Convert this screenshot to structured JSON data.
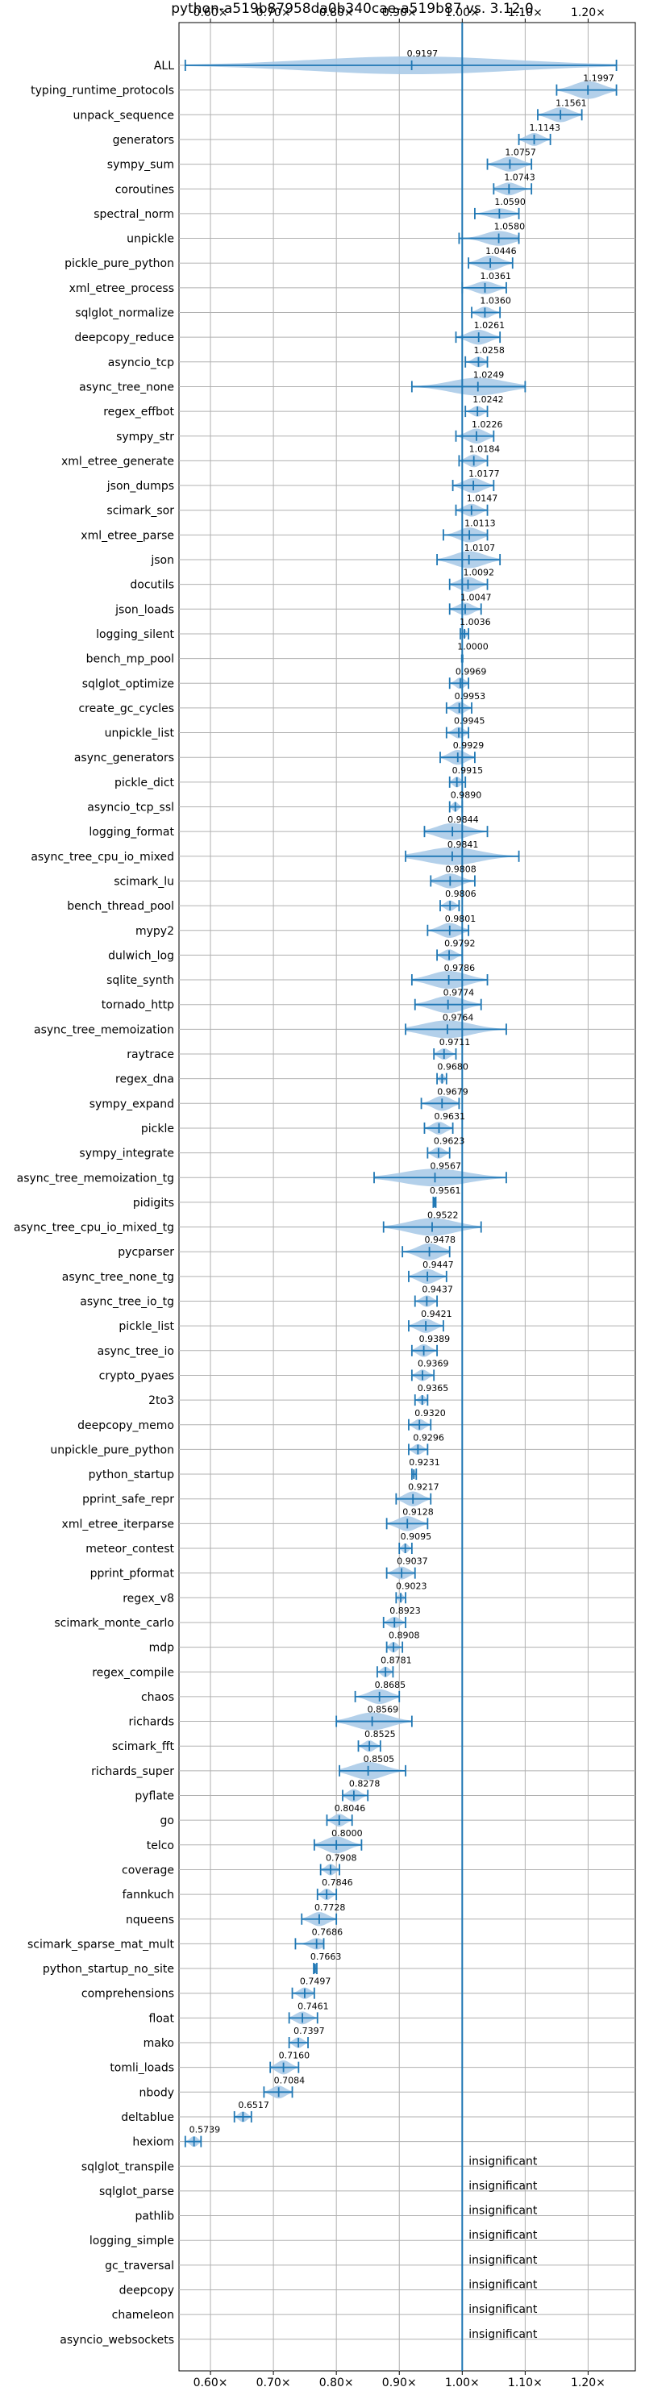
{
  "chart_data": {
    "type": "violin",
    "title": "python-a519b87958da0b340cae-a519b87 vs. 3.12.0",
    "xlim": [
      0.55,
      1.275
    ],
    "xticks": [
      0.6,
      0.7,
      0.8,
      0.9,
      1.0,
      1.1,
      1.2
    ],
    "xtick_labels": [
      "0.60×",
      "0.70×",
      "0.80×",
      "0.90×",
      "1.00×",
      "1.10×",
      "1.20×"
    ],
    "reference_line": 1.0,
    "grid": true,
    "insignificant_label": "insignificant",
    "benchmarks": [
      {
        "name": "ALL",
        "value": 0.9197,
        "label": "0.9197",
        "min": 0.56,
        "max": 1.245,
        "spread": 0.03
      },
      {
        "name": "typing_runtime_protocols",
        "value": 1.1997,
        "label": "1.1997",
        "min": 1.15,
        "max": 1.245,
        "spread": 0.03
      },
      {
        "name": "unpack_sequence",
        "value": 1.1561,
        "label": "1.1561",
        "min": 1.12,
        "max": 1.19,
        "spread": 0.02
      },
      {
        "name": "generators",
        "value": 1.1143,
        "label": "1.1143",
        "min": 1.09,
        "max": 1.14,
        "spread": 0.015
      },
      {
        "name": "sympy_sum",
        "value": 1.0757,
        "label": "1.0757",
        "min": 1.04,
        "max": 1.11,
        "spread": 0.02
      },
      {
        "name": "coroutines",
        "value": 1.0743,
        "label": "1.0743",
        "min": 1.05,
        "max": 1.11,
        "spread": 0.015
      },
      {
        "name": "spectral_norm",
        "value": 1.059,
        "label": "1.0590",
        "min": 1.02,
        "max": 1.09,
        "spread": 0.01
      },
      {
        "name": "unpickle",
        "value": 1.058,
        "label": "1.0580",
        "min": 0.995,
        "max": 1.09,
        "spread": 0.02
      },
      {
        "name": "pickle_pure_python",
        "value": 1.0446,
        "label": "1.0446",
        "min": 1.01,
        "max": 1.08,
        "spread": 0.02
      },
      {
        "name": "xml_etree_process",
        "value": 1.0361,
        "label": "1.0361",
        "min": 1.0,
        "max": 1.07,
        "spread": 0.015
      },
      {
        "name": "sqlglot_normalize",
        "value": 1.036,
        "label": "1.0360",
        "min": 1.015,
        "max": 1.06,
        "spread": 0.012
      },
      {
        "name": "deepcopy_reduce",
        "value": 1.0261,
        "label": "1.0261",
        "min": 0.99,
        "max": 1.06,
        "spread": 0.02
      },
      {
        "name": "asyncio_tcp",
        "value": 1.0258,
        "label": "1.0258",
        "min": 1.005,
        "max": 1.04,
        "spread": 0.01
      },
      {
        "name": "async_tree_none",
        "value": 1.0249,
        "label": "1.0249",
        "min": 0.92,
        "max": 1.1,
        "spread": 0.04
      },
      {
        "name": "regex_effbot",
        "value": 1.0242,
        "label": "1.0242",
        "min": 1.005,
        "max": 1.04,
        "spread": 0.01
      },
      {
        "name": "sympy_str",
        "value": 1.0226,
        "label": "1.0226",
        "min": 0.99,
        "max": 1.05,
        "spread": 0.02
      },
      {
        "name": "xml_etree_generate",
        "value": 1.0184,
        "label": "1.0184",
        "min": 0.995,
        "max": 1.04,
        "spread": 0.015
      },
      {
        "name": "json_dumps",
        "value": 1.0177,
        "label": "1.0177",
        "min": 0.985,
        "max": 1.05,
        "spread": 0.02
      },
      {
        "name": "scimark_sor",
        "value": 1.0147,
        "label": "1.0147",
        "min": 0.99,
        "max": 1.04,
        "spread": 0.015
      },
      {
        "name": "xml_etree_parse",
        "value": 1.0113,
        "label": "1.0113",
        "min": 0.97,
        "max": 1.04,
        "spread": 0.02
      },
      {
        "name": "json",
        "value": 1.0107,
        "label": "1.0107",
        "min": 0.96,
        "max": 1.06,
        "spread": 0.025
      },
      {
        "name": "docutils",
        "value": 1.0092,
        "label": "1.0092",
        "min": 0.98,
        "max": 1.04,
        "spread": 0.02
      },
      {
        "name": "json_loads",
        "value": 1.0047,
        "label": "1.0047",
        "min": 0.98,
        "max": 1.03,
        "spread": 0.015
      },
      {
        "name": "logging_silent",
        "value": 1.0036,
        "label": "1.0036",
        "min": 0.997,
        "max": 1.01,
        "spread": 0.006
      },
      {
        "name": "bench_mp_pool",
        "value": 1.0,
        "label": "1.0000",
        "min": 1.0,
        "max": 1.0,
        "spread": 0.0
      },
      {
        "name": "sqlglot_optimize",
        "value": 0.9969,
        "label": "0.9969",
        "min": 0.98,
        "max": 1.01,
        "spread": 0.012
      },
      {
        "name": "create_gc_cycles",
        "value": 0.9953,
        "label": "0.9953",
        "min": 0.975,
        "max": 1.015,
        "spread": 0.015
      },
      {
        "name": "unpickle_list",
        "value": 0.9945,
        "label": "0.9945",
        "min": 0.975,
        "max": 1.01,
        "spread": 0.012
      },
      {
        "name": "async_generators",
        "value": 0.9929,
        "label": "0.9929",
        "min": 0.965,
        "max": 1.02,
        "spread": 0.02
      },
      {
        "name": "pickle_dict",
        "value": 0.9915,
        "label": "0.9915",
        "min": 0.98,
        "max": 1.005,
        "spread": 0.01
      },
      {
        "name": "asyncio_tcp_ssl",
        "value": 0.989,
        "label": "0.9890",
        "min": 0.98,
        "max": 1.0,
        "spread": 0.008
      },
      {
        "name": "logging_format",
        "value": 0.9844,
        "label": "0.9844",
        "min": 0.94,
        "max": 1.04,
        "spread": 0.025
      },
      {
        "name": "async_tree_cpu_io_mixed",
        "value": 0.9841,
        "label": "0.9841",
        "min": 0.91,
        "max": 1.09,
        "spread": 0.04
      },
      {
        "name": "scimark_lu",
        "value": 0.9808,
        "label": "0.9808",
        "min": 0.95,
        "max": 1.02,
        "spread": 0.02
      },
      {
        "name": "bench_thread_pool",
        "value": 0.9806,
        "label": "0.9806",
        "min": 0.965,
        "max": 0.995,
        "spread": 0.01
      },
      {
        "name": "mypy2",
        "value": 0.9801,
        "label": "0.9801",
        "min": 0.945,
        "max": 1.01,
        "spread": 0.02
      },
      {
        "name": "dulwich_log",
        "value": 0.9792,
        "label": "0.9792",
        "min": 0.96,
        "max": 1.0,
        "spread": 0.012
      },
      {
        "name": "sqlite_synth",
        "value": 0.9786,
        "label": "0.9786",
        "min": 0.92,
        "max": 1.04,
        "spread": 0.03
      },
      {
        "name": "tornado_http",
        "value": 0.9774,
        "label": "0.9774",
        "min": 0.925,
        "max": 1.03,
        "spread": 0.025
      },
      {
        "name": "async_tree_memoization",
        "value": 0.9764,
        "label": "0.9764",
        "min": 0.91,
        "max": 1.07,
        "spread": 0.04
      },
      {
        "name": "raytrace",
        "value": 0.9711,
        "label": "0.9711",
        "min": 0.955,
        "max": 0.99,
        "spread": 0.012
      },
      {
        "name": "regex_dna",
        "value": 0.968,
        "label": "0.9680",
        "min": 0.96,
        "max": 0.975,
        "spread": 0.008
      },
      {
        "name": "sympy_expand",
        "value": 0.9679,
        "label": "0.9679",
        "min": 0.935,
        "max": 0.995,
        "spread": 0.02
      },
      {
        "name": "pickle",
        "value": 0.9631,
        "label": "0.9631",
        "min": 0.94,
        "max": 0.985,
        "spread": 0.015
      },
      {
        "name": "sympy_integrate",
        "value": 0.9623,
        "label": "0.9623",
        "min": 0.945,
        "max": 0.98,
        "spread": 0.012
      },
      {
        "name": "async_tree_memoization_tg",
        "value": 0.9567,
        "label": "0.9567",
        "min": 0.86,
        "max": 1.07,
        "spread": 0.045
      },
      {
        "name": "pidigits",
        "value": 0.9561,
        "label": "0.9561",
        "min": 0.954,
        "max": 0.958,
        "spread": 0.003
      },
      {
        "name": "async_tree_cpu_io_mixed_tg",
        "value": 0.9522,
        "label": "0.9522",
        "min": 0.875,
        "max": 1.03,
        "spread": 0.04
      },
      {
        "name": "pycparser",
        "value": 0.9478,
        "label": "0.9478",
        "min": 0.905,
        "max": 0.98,
        "spread": 0.025
      },
      {
        "name": "async_tree_none_tg",
        "value": 0.9447,
        "label": "0.9447",
        "min": 0.915,
        "max": 0.975,
        "spread": 0.02
      },
      {
        "name": "async_tree_io_tg",
        "value": 0.9437,
        "label": "0.9437",
        "min": 0.925,
        "max": 0.96,
        "spread": 0.012
      },
      {
        "name": "pickle_list",
        "value": 0.9421,
        "label": "0.9421",
        "min": 0.915,
        "max": 0.97,
        "spread": 0.018
      },
      {
        "name": "async_tree_io",
        "value": 0.9389,
        "label": "0.9389",
        "min": 0.92,
        "max": 0.96,
        "spread": 0.015
      },
      {
        "name": "crypto_pyaes",
        "value": 0.9369,
        "label": "0.9369",
        "min": 0.92,
        "max": 0.955,
        "spread": 0.012
      },
      {
        "name": "2to3",
        "value": 0.9365,
        "label": "0.9365",
        "min": 0.925,
        "max": 0.945,
        "spread": 0.008
      },
      {
        "name": "deepcopy_memo",
        "value": 0.932,
        "label": "0.9320",
        "min": 0.915,
        "max": 0.95,
        "spread": 0.012
      },
      {
        "name": "unpickle_pure_python",
        "value": 0.9296,
        "label": "0.9296",
        "min": 0.915,
        "max": 0.945,
        "spread": 0.01
      },
      {
        "name": "python_startup",
        "value": 0.9231,
        "label": "0.9231",
        "min": 0.92,
        "max": 0.927,
        "spread": 0.005
      },
      {
        "name": "pprint_safe_repr",
        "value": 0.9217,
        "label": "0.9217",
        "min": 0.895,
        "max": 0.95,
        "spread": 0.02
      },
      {
        "name": "xml_etree_iterparse",
        "value": 0.9128,
        "label": "0.9128",
        "min": 0.88,
        "max": 0.945,
        "spread": 0.02
      },
      {
        "name": "meteor_contest",
        "value": 0.9095,
        "label": "0.9095",
        "min": 0.9,
        "max": 0.92,
        "spread": 0.008
      },
      {
        "name": "pprint_pformat",
        "value": 0.9037,
        "label": "0.9037",
        "min": 0.88,
        "max": 0.925,
        "spread": 0.015
      },
      {
        "name": "regex_v8",
        "value": 0.9023,
        "label": "0.9023",
        "min": 0.895,
        "max": 0.91,
        "spread": 0.006
      },
      {
        "name": "scimark_monte_carlo",
        "value": 0.8923,
        "label": "0.8923",
        "min": 0.875,
        "max": 0.91,
        "spread": 0.012
      },
      {
        "name": "mdp",
        "value": 0.8908,
        "label": "0.8908",
        "min": 0.88,
        "max": 0.905,
        "spread": 0.01
      },
      {
        "name": "regex_compile",
        "value": 0.8781,
        "label": "0.8781",
        "min": 0.865,
        "max": 0.89,
        "spread": 0.01
      },
      {
        "name": "chaos",
        "value": 0.8685,
        "label": "0.8685",
        "min": 0.83,
        "max": 0.9,
        "spread": 0.02
      },
      {
        "name": "richards",
        "value": 0.8569,
        "label": "0.8569",
        "min": 0.8,
        "max": 0.92,
        "spread": 0.03
      },
      {
        "name": "scimark_fft",
        "value": 0.8525,
        "label": "0.8525",
        "min": 0.835,
        "max": 0.87,
        "spread": 0.012
      },
      {
        "name": "richards_super",
        "value": 0.8505,
        "label": "0.8505",
        "min": 0.805,
        "max": 0.91,
        "spread": 0.03
      },
      {
        "name": "pyflate",
        "value": 0.8278,
        "label": "0.8278",
        "min": 0.81,
        "max": 0.85,
        "spread": 0.015
      },
      {
        "name": "go",
        "value": 0.8046,
        "label": "0.8046",
        "min": 0.785,
        "max": 0.825,
        "spread": 0.015
      },
      {
        "name": "telco",
        "value": 0.8,
        "label": "0.8000",
        "min": 0.765,
        "max": 0.84,
        "spread": 0.025
      },
      {
        "name": "coverage",
        "value": 0.7908,
        "label": "0.7908",
        "min": 0.775,
        "max": 0.805,
        "spread": 0.012
      },
      {
        "name": "fannkuch",
        "value": 0.7846,
        "label": "0.7846",
        "min": 0.77,
        "max": 0.8,
        "spread": 0.012
      },
      {
        "name": "nqueens",
        "value": 0.7728,
        "label": "0.7728",
        "min": 0.745,
        "max": 0.8,
        "spread": 0.018
      },
      {
        "name": "scimark_sparse_mat_mult",
        "value": 0.7686,
        "label": "0.7686",
        "min": 0.735,
        "max": 0.78,
        "spread": 0.012
      },
      {
        "name": "python_startup_no_site",
        "value": 0.7663,
        "label": "0.7663",
        "min": 0.764,
        "max": 0.769,
        "spread": 0.004
      },
      {
        "name": "comprehensions",
        "value": 0.7497,
        "label": "0.7497",
        "min": 0.73,
        "max": 0.765,
        "spread": 0.012
      },
      {
        "name": "float",
        "value": 0.7461,
        "label": "0.7461",
        "min": 0.725,
        "max": 0.77,
        "spread": 0.015
      },
      {
        "name": "mako",
        "value": 0.7397,
        "label": "0.7397",
        "min": 0.725,
        "max": 0.755,
        "spread": 0.01
      },
      {
        "name": "tomli_loads",
        "value": 0.716,
        "label": "0.7160",
        "min": 0.695,
        "max": 0.74,
        "spread": 0.018
      },
      {
        "name": "nbody",
        "value": 0.7084,
        "label": "0.7084",
        "min": 0.685,
        "max": 0.73,
        "spread": 0.015
      },
      {
        "name": "deltablue",
        "value": 0.6517,
        "label": "0.6517",
        "min": 0.638,
        "max": 0.665,
        "spread": 0.01
      },
      {
        "name": "hexiom",
        "value": 0.5739,
        "label": "0.5739",
        "min": 0.56,
        "max": 0.585,
        "spread": 0.01
      },
      {
        "name": "sqlglot_transpile",
        "value": null,
        "label": "insignificant"
      },
      {
        "name": "sqlglot_parse",
        "value": null,
        "label": "insignificant"
      },
      {
        "name": "pathlib",
        "value": null,
        "label": "insignificant"
      },
      {
        "name": "logging_simple",
        "value": null,
        "label": "insignificant"
      },
      {
        "name": "gc_traversal",
        "value": null,
        "label": "insignificant"
      },
      {
        "name": "deepcopy",
        "value": null,
        "label": "insignificant"
      },
      {
        "name": "chameleon",
        "value": null,
        "label": "insignificant"
      },
      {
        "name": "asyncio_websockets",
        "value": null,
        "label": "insignificant"
      }
    ],
    "colors": {
      "violin_fill": "#a6c8e6",
      "line": "#1f77b4",
      "grid": "#b0b0b0"
    }
  }
}
